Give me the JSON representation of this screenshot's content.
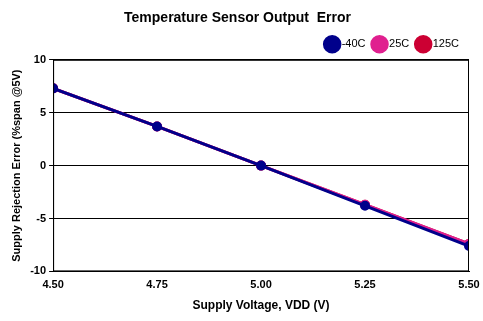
{
  "chart_data": {
    "type": "line",
    "title": "Temperature Sensor Output  Error",
    "x_label": "Supply Voltage, VDD (V)",
    "y_label": "Supply Rejection Error (%span @5V)",
    "x": [
      4.5,
      4.75,
      5.0,
      5.25,
      5.5
    ],
    "series": [
      {
        "name": "-40C",
        "color": "#00008b",
        "values": [
          7.3,
          3.7,
          0,
          -3.8,
          -7.6
        ]
      },
      {
        "name": "25C",
        "color": "#e0208f",
        "values": [
          7.3,
          3.7,
          0,
          -3.7,
          -7.4
        ]
      },
      {
        "name": "125C",
        "color": "#cc0033",
        "values": [
          7.3,
          3.7,
          0,
          -3.7,
          -7.4
        ]
      }
    ],
    "xlim": [
      4.5,
      5.5
    ],
    "xticks": [
      {
        "value": 4.5,
        "label": "4.50"
      },
      {
        "value": 4.75,
        "label": "4.75"
      },
      {
        "value": 5.0,
        "label": "5.00"
      },
      {
        "value": 5.25,
        "label": "5.25"
      },
      {
        "value": 5.5,
        "label": "5.50"
      }
    ],
    "ylim": [
      -10,
      10
    ],
    "yticks": [
      -10,
      -5,
      0,
      5,
      10
    ],
    "grid": "y",
    "legend": "top-right",
    "marker": "circle"
  }
}
